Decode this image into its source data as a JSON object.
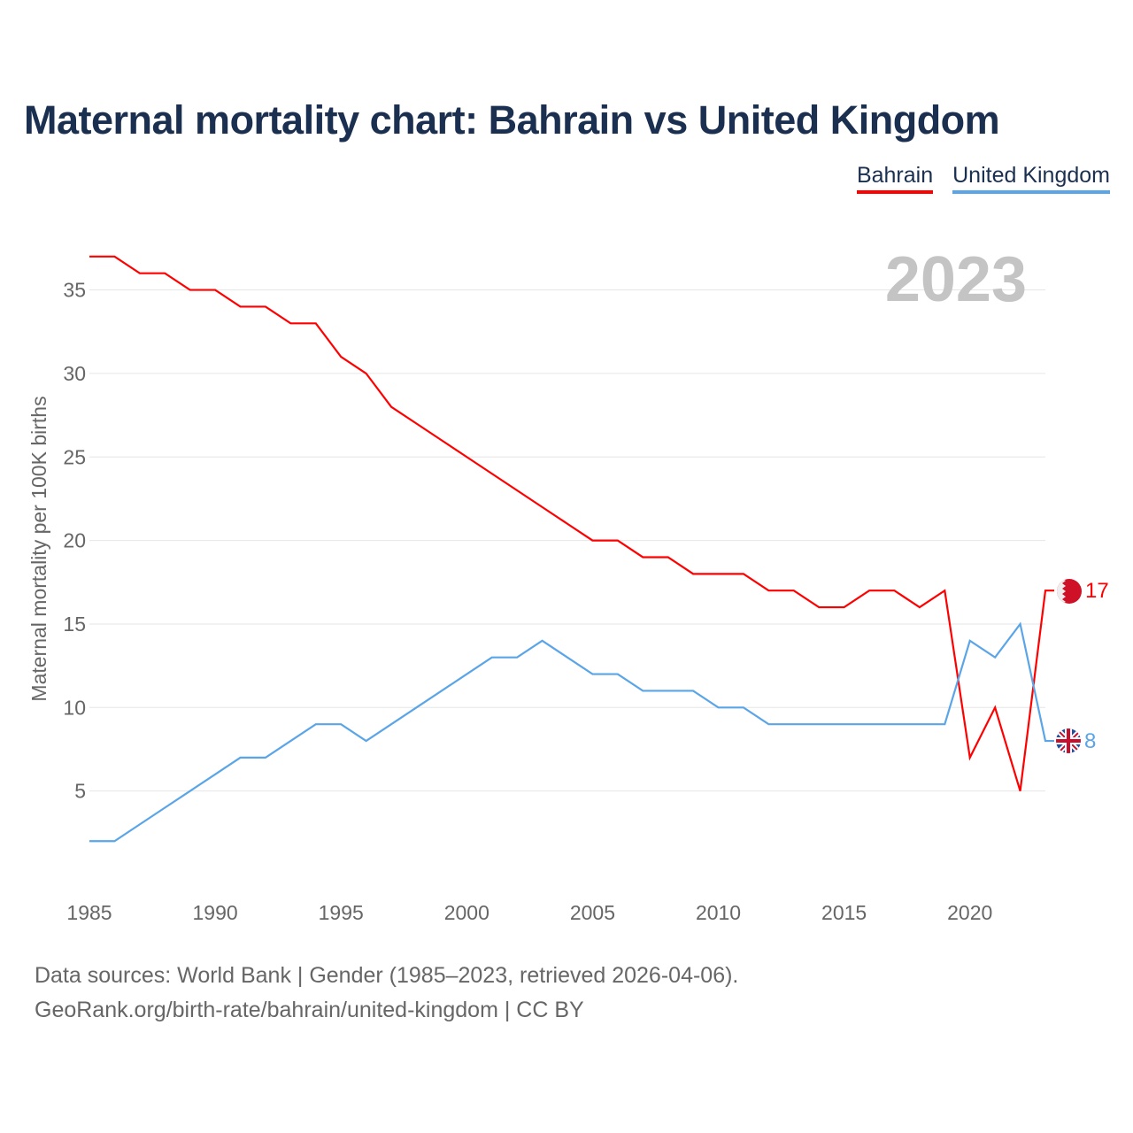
{
  "title": "Maternal mortality chart: Bahrain vs United Kingdom",
  "year_label": "2023",
  "footer": {
    "line1": "Data sources: World Bank | Gender (1985–2023, retrieved 2026-04-06).",
    "line2": "GeoRank.org/birth-rate/bahrain/united-kingdom | CC BY"
  },
  "chart_data": {
    "type": "line",
    "title": "Maternal mortality chart: Bahrain vs United Kingdom",
    "xlabel": "",
    "ylabel": "Maternal mortality per 100K births",
    "xlim": [
      1985,
      2023
    ],
    "ylim": [
      0,
      38
    ],
    "x_ticks": [
      1985,
      1990,
      1995,
      2000,
      2005,
      2010,
      2015,
      2020
    ],
    "y_ticks": [
      5,
      10,
      15,
      20,
      25,
      30,
      35
    ],
    "grid": true,
    "legend_position": "top-right",
    "x": [
      1985,
      1986,
      1987,
      1988,
      1989,
      1990,
      1991,
      1992,
      1993,
      1994,
      1995,
      1996,
      1997,
      1998,
      1999,
      2000,
      2001,
      2002,
      2003,
      2004,
      2005,
      2006,
      2007,
      2008,
      2009,
      2010,
      2011,
      2012,
      2013,
      2014,
      2015,
      2016,
      2017,
      2018,
      2019,
      2020,
      2021,
      2022,
      2023
    ],
    "series": [
      {
        "name": "Bahrain",
        "color": "#ff0000",
        "end_label": "17",
        "values": [
          37,
          37,
          36,
          36,
          35,
          35,
          34,
          34,
          33,
          33,
          31,
          30,
          28,
          27,
          26,
          25,
          24,
          23,
          22,
          21,
          20,
          20,
          19,
          19,
          18,
          18,
          18,
          17,
          17,
          16,
          16,
          17,
          17,
          16,
          17,
          7,
          10,
          5,
          17
        ]
      },
      {
        "name": "United Kingdom",
        "color": "#5aa5e8",
        "end_label": "8",
        "values": [
          2,
          2,
          3,
          4,
          5,
          6,
          7,
          7,
          8,
          9,
          9,
          8,
          9,
          10,
          11,
          12,
          13,
          13,
          14,
          13,
          12,
          12,
          11,
          11,
          11,
          10,
          10,
          9,
          9,
          9,
          9,
          9,
          9,
          9,
          9,
          14,
          13,
          15,
          8
        ]
      }
    ]
  }
}
